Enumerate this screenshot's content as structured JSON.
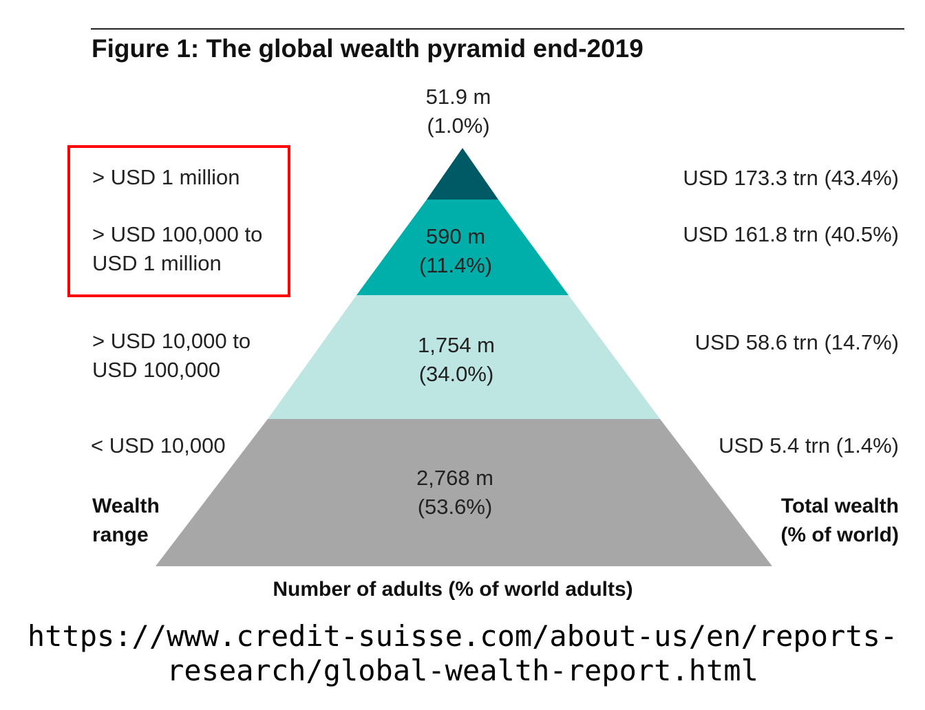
{
  "title": "Figure 1: The global wealth pyramid end-2019",
  "tiers": [
    {
      "wealth_range": [
        "> USD 1 million"
      ],
      "adults": [
        "51.9 m",
        "(1.0%)"
      ],
      "total_wealth": "USD 173.3 trn (43.4%)",
      "color": "#005a65"
    },
    {
      "wealth_range": [
        "> USD 100,000 to",
        "USD 1 million"
      ],
      "adults": [
        "590 m",
        "(11.4%)"
      ],
      "total_wealth": "USD 161.8 trn (40.5%)",
      "color": "#00afa9"
    },
    {
      "wealth_range": [
        "> USD 10,000 to",
        "USD 100,000"
      ],
      "adults": [
        "1,754 m",
        "(34.0%)"
      ],
      "total_wealth": "USD 58.6 trn (14.7%)",
      "color": "#bde5e2"
    },
    {
      "wealth_range": [
        "< USD 10,000"
      ],
      "adults": [
        "2,768 m",
        "(53.6%)"
      ],
      "total_wealth": "USD 5.4 trn (1.4%)",
      "color": "#a7a7a7"
    }
  ],
  "left_axis_label": [
    "Wealth",
    "range"
  ],
  "right_axis_label": [
    "Total wealth",
    "(% of world)"
  ],
  "bottom_label": "Number of adults (% of world adults)",
  "highlight_color": "#ff0000",
  "source_url": [
    "https://www.credit-suisse.com/about-us/en/reports-",
    "research/global-wealth-report.html"
  ]
}
